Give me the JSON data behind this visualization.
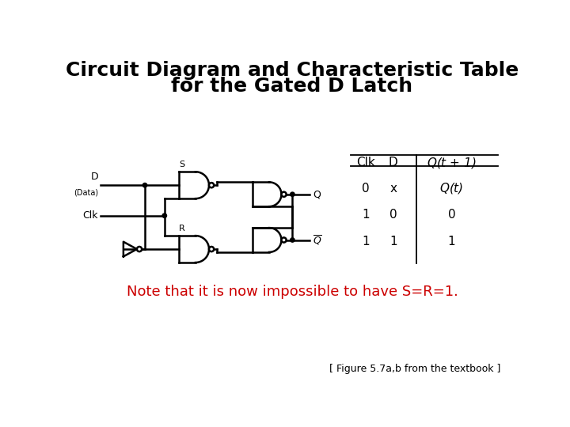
{
  "title_line1": "Circuit Diagram and Characteristic Table",
  "title_line2": "for the Gated D Latch",
  "title_fontsize": 18,
  "title_fontweight": "bold",
  "bg_color": "#ffffff",
  "note_text": "Note that it is now impossible to have S=R=1.",
  "note_color": "#cc0000",
  "note_fontsize": 13,
  "caption_text": "[ Figure 5.7a,b from the textbook ]",
  "caption_color": "#000000",
  "caption_fontsize": 9,
  "table_headers": [
    "Clk",
    "D",
    "Q(t+1)"
  ],
  "table_rows": [
    [
      "0",
      "x",
      "Q(t)"
    ],
    [
      "1",
      "0",
      "0"
    ],
    [
      "1",
      "1",
      "1"
    ]
  ]
}
